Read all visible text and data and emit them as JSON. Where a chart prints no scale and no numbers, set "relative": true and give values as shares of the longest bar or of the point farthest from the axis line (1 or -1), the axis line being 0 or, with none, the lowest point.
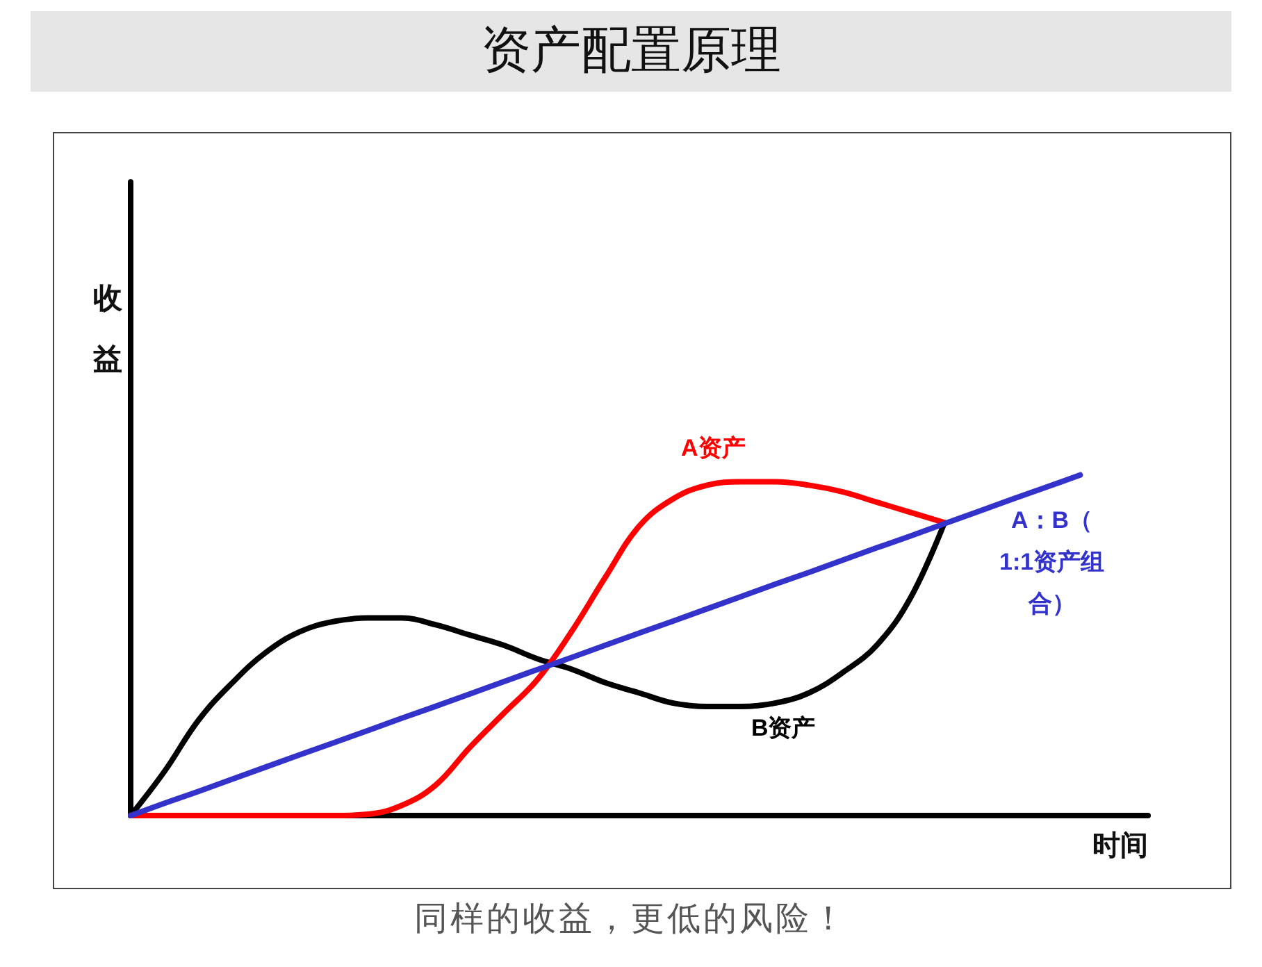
{
  "chart_data": {
    "type": "line",
    "title": "资产配置原理",
    "xlabel": "时间",
    "ylabel": "收益",
    "relative": true,
    "grid": false,
    "legend": false,
    "marker": "none",
    "line_style": "solid",
    "annotations": [
      "同样的收益，更低的风险！"
    ],
    "categories": [
      null,
      null,
      null,
      null,
      null,
      null,
      null,
      null,
      null,
      null,
      null,
      null,
      null,
      null,
      null,
      null,
      null,
      null,
      null,
      null,
      null,
      null,
      null,
      null,
      null,
      null,
      null,
      null,
      null,
      null,
      null
    ],
    "series": [
      {
        "name": "B资产",
        "color": "#000000",
        "values": [
          0,
          0.13,
          0.28,
          0.39,
          0.48,
          0.54,
          0.57,
          0.58,
          0.58,
          0.56,
          0.53,
          0.5,
          0.46,
          0.43,
          0.39,
          0.36,
          0.33,
          0.32,
          0.32,
          0.33,
          0.36,
          0.42,
          0.5,
          0.64,
          0.86,
          null,
          null,
          null,
          null,
          null,
          null
        ]
      },
      {
        "name": "A资产",
        "color": "#ff0000",
        "values": [
          0,
          0,
          0,
          0,
          0,
          0,
          0,
          0.004,
          0.03,
          0.09,
          0.2,
          0.3,
          0.4,
          0.54,
          0.7,
          0.85,
          0.93,
          0.97,
          0.98,
          0.98,
          0.97,
          0.95,
          0.92,
          0.89,
          0.86,
          null,
          null,
          null,
          null,
          null,
          null
        ]
      },
      {
        "name": "A：B（1:1资产组合）",
        "color": "#3333cc",
        "values": [
          0,
          0.036,
          0.071,
          0.107,
          0.143,
          0.179,
          0.214,
          0.25,
          0.286,
          0.321,
          0.357,
          0.393,
          0.429,
          0.464,
          0.5,
          0.536,
          0.571,
          0.607,
          0.643,
          0.679,
          0.714,
          0.75,
          0.786,
          0.821,
          0.857,
          0.893,
          0.929,
          0.964,
          1,
          null,
          null
        ]
      }
    ]
  }
}
